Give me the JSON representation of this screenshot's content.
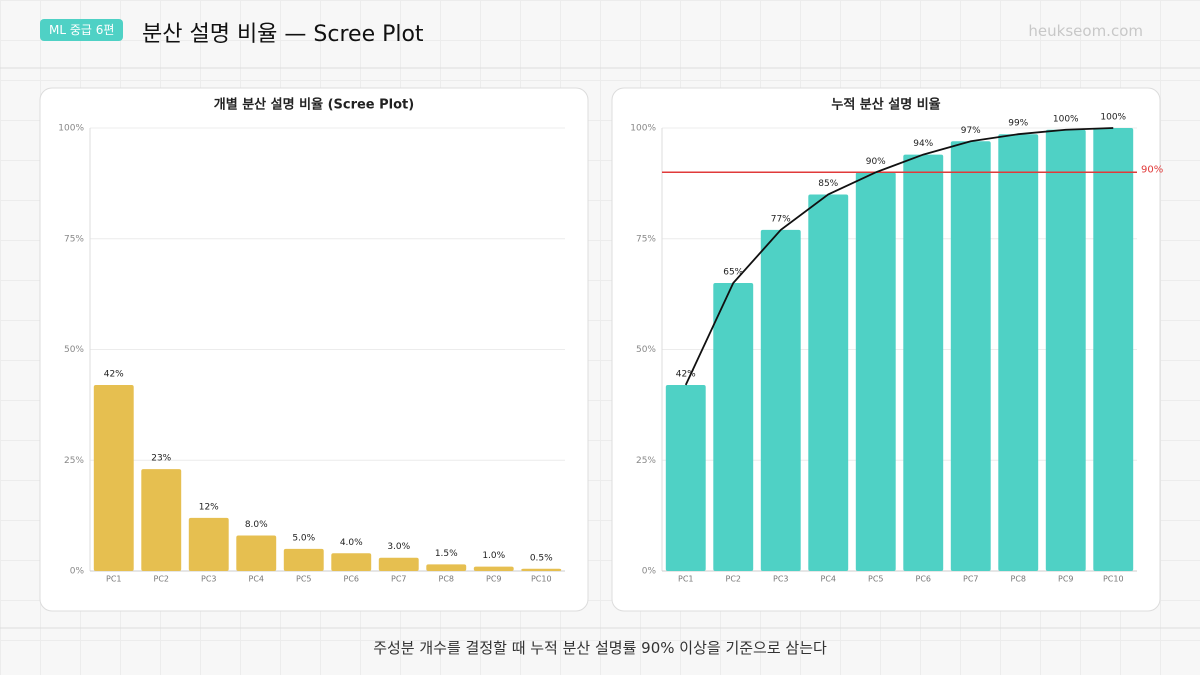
{
  "header": {
    "badge": "ML 중급 6편",
    "title": "분산 설명 비율 — Scree Plot",
    "brand": "heukseom.com"
  },
  "footer": {
    "caption": "주성분 개수를 결정할 때 누적 분산 설명률 90% 이상을 기준으로 삼는다"
  },
  "chart_data": [
    {
      "type": "bar",
      "title": "개별 분산 설명 비율 (Scree Plot)",
      "categories": [
        "PC1",
        "PC2",
        "PC3",
        "PC4",
        "PC5",
        "PC6",
        "PC7",
        "PC8",
        "PC9",
        "PC10"
      ],
      "values": [
        42,
        23,
        12,
        8,
        5,
        4,
        3,
        1.5,
        1,
        0.5
      ],
      "value_labels": [
        "42%",
        "23%",
        "12%",
        "8.0%",
        "5.0%",
        "4.0%",
        "3.0%",
        "1.5%",
        "1.0%",
        "0.5%"
      ],
      "color": "#e6bf50",
      "ylim": [
        0,
        100
      ],
      "yticks": [
        {
          "value": 0,
          "label": "0%"
        },
        {
          "value": 25,
          "label": "25%"
        },
        {
          "value": 50,
          "label": "50%"
        },
        {
          "value": 75,
          "label": "75%"
        },
        {
          "value": 100,
          "label": "100%"
        }
      ],
      "grid": true
    },
    {
      "type": "bar",
      "title": "누적 분산 설명 비율",
      "categories": [
        "PC1",
        "PC2",
        "PC3",
        "PC4",
        "PC5",
        "PC6",
        "PC7",
        "PC8",
        "PC9",
        "PC10"
      ],
      "values": [
        42,
        65,
        77,
        85,
        90,
        94,
        97,
        98.6,
        99.6,
        100
      ],
      "value_labels": [
        "42%",
        "65%",
        "77%",
        "85%",
        "90%",
        "94%",
        "97%",
        "99%",
        "100%",
        "100%"
      ],
      "color": "#4fd1c5",
      "line_color": "#111111",
      "ylim": [
        0,
        100
      ],
      "yticks": [
        {
          "value": 0,
          "label": "0%"
        },
        {
          "value": 25,
          "label": "25%"
        },
        {
          "value": 50,
          "label": "50%"
        },
        {
          "value": 75,
          "label": "75%"
        },
        {
          "value": 100,
          "label": "100%"
        }
      ],
      "grid": true,
      "threshold": {
        "value": 90,
        "label": "90%",
        "color": "#e03a3a"
      }
    }
  ]
}
